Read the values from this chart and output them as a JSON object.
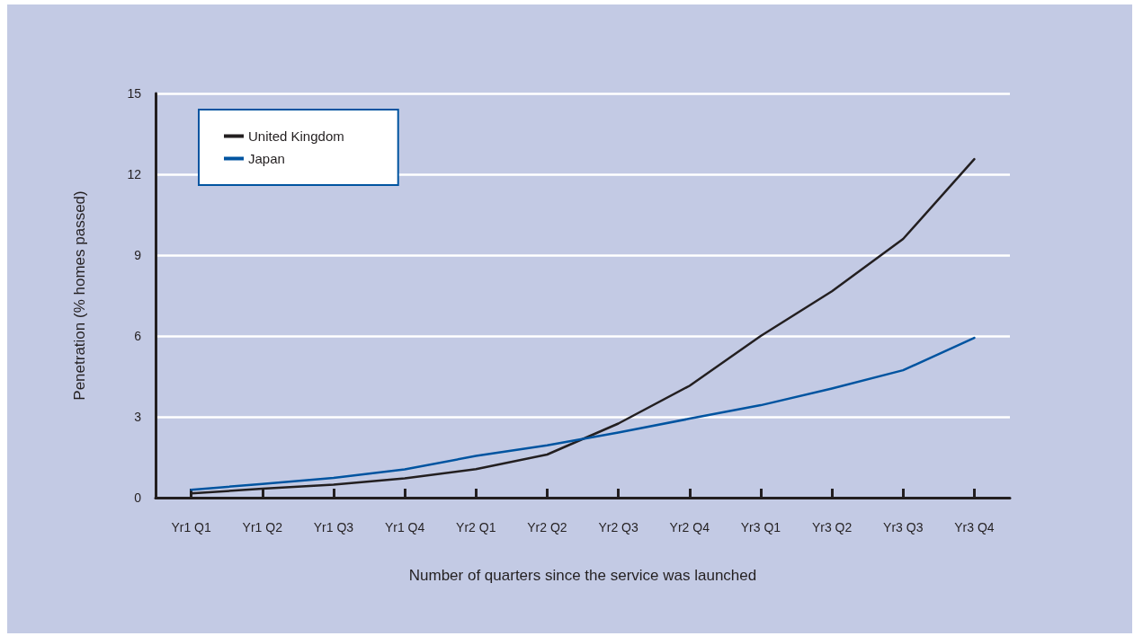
{
  "chart_data": {
    "type": "line",
    "xlabel": "Number of quarters since the service was launched",
    "ylabel": "Penetration (% homes passed)",
    "categories": [
      "Yr1 Q1",
      "Yr1 Q2",
      "Yr1 Q3",
      "Yr1 Q4",
      "Yr2 Q1",
      "Yr2 Q2",
      "Yr2 Q3",
      "Yr2 Q4",
      "Yr3 Q1",
      "Yr3 Q2",
      "Yr3 Q3",
      "Yr3 Q4"
    ],
    "series": [
      {
        "name": "United Kingdom",
        "color": "#231f20",
        "values": [
          0.16,
          0.33,
          0.48,
          0.72,
          1.06,
          1.6,
          2.75,
          4.15,
          6.0,
          7.66,
          9.6,
          12.56
        ]
      },
      {
        "name": "Japan",
        "color": "#0054a0",
        "values": [
          0.29,
          0.51,
          0.73,
          1.05,
          1.55,
          1.94,
          2.42,
          2.93,
          3.43,
          4.05,
          4.73,
          5.93
        ]
      }
    ],
    "ylim": [
      0,
      15
    ],
    "yticks": [
      0,
      3,
      6,
      9,
      12,
      15
    ],
    "grid": "y",
    "legend": "top left",
    "marker": "none",
    "line_style": "solid"
  }
}
